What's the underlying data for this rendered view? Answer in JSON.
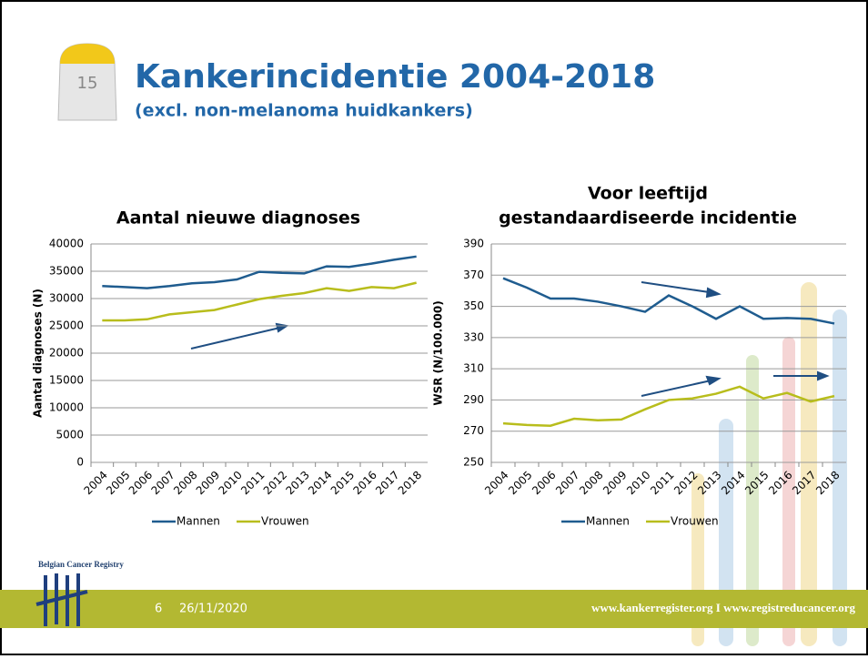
{
  "slide": {
    "title": "Kankerincidentie 2004-2018",
    "subtitle": "(excl. non-melanoma huidkankers)",
    "milestone": "15",
    "logo": "Belgian Cancer Registry",
    "page": "6",
    "date": "26/11/2020",
    "footer": "www.kankerregister.org  I  www.registreducancer.org"
  },
  "chart_data": [
    {
      "type": "line",
      "title": [
        "Aantal nieuwe diagnoses"
      ],
      "y_label": "Aantal diagnoses (N)",
      "categories": [
        "2004",
        "2005",
        "2006",
        "2007",
        "2008",
        "2009",
        "2010",
        "2011",
        "2012",
        "2013",
        "2014",
        "2015",
        "2016",
        "2017",
        "2018"
      ],
      "series": [
        {
          "name": "Mannen",
          "color": "#1f5c8f",
          "values": [
            32300,
            32100,
            31900,
            32300,
            32800,
            33000,
            33500,
            34900,
            34700,
            34600,
            35900,
            35800,
            36400,
            37100,
            37700
          ]
        },
        {
          "name": "Vrouwen",
          "color": "#b8bd1c",
          "values": [
            26000,
            26000,
            26200,
            27100,
            27500,
            27900,
            28900,
            29900,
            30500,
            31000,
            31900,
            31400,
            32100,
            31900,
            32900
          ]
        }
      ],
      "ylim": [
        0,
        40000
      ],
      "yticks": [
        0,
        5000,
        10000,
        15000,
        20000,
        25000,
        30000,
        35000,
        40000
      ],
      "grid": true,
      "legend": "bottom"
    },
    {
      "type": "line",
      "title": [
        "Voor leeftijd",
        "gestandaardiseerde incidentie"
      ],
      "y_label": "WSR (N/100.000)",
      "categories": [
        "2004",
        "2005",
        "2006",
        "2007",
        "2008",
        "2009",
        "2010",
        "2011",
        "2012",
        "2013",
        "2014",
        "2015",
        "2016",
        "2017",
        "2018"
      ],
      "series": [
        {
          "name": "Mannen",
          "color": "#1f5c8f",
          "values": [
            368,
            362,
            355,
            355,
            353,
            350,
            346.5,
            357,
            350,
            342,
            350,
            342,
            342.5,
            342,
            339
          ]
        },
        {
          "name": "Vrouwen",
          "color": "#b8bd1c",
          "values": [
            275,
            274,
            273.5,
            278,
            277,
            277.5,
            284,
            290,
            291,
            294,
            298.5,
            291,
            294.5,
            289,
            292.5
          ]
        }
      ],
      "ylim": [
        250,
        390
      ],
      "yticks": [
        250,
        270,
        290,
        310,
        330,
        350,
        370,
        390
      ],
      "grid": true,
      "legend": "bottom"
    }
  ]
}
